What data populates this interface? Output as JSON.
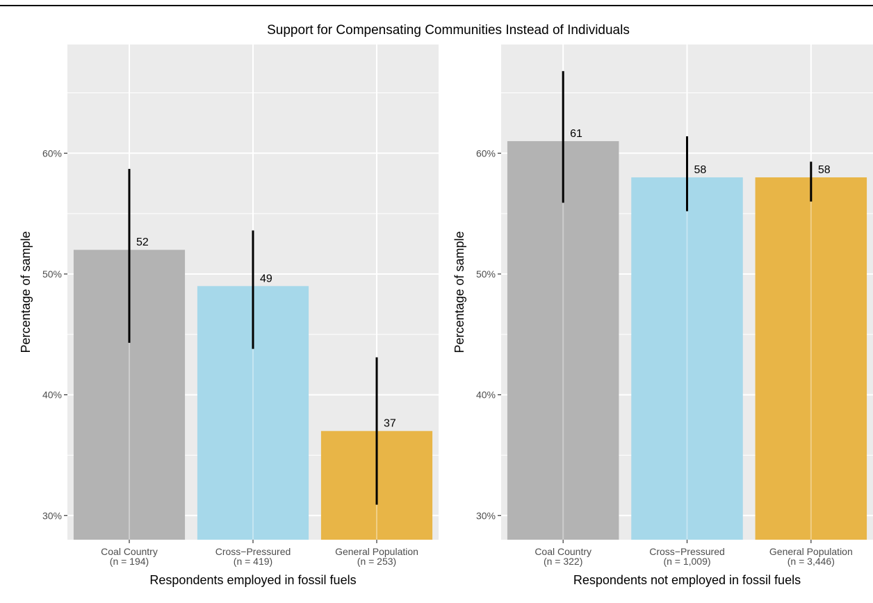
{
  "chart_data": {
    "type": "bar",
    "title": "Support for Compensating Communities Instead of Individuals",
    "colors": [
      "#b3b3b3",
      "#a6d8ea",
      "#e8b547"
    ],
    "panels": [
      {
        "xlabel": "Respondents employed in fossil fuels",
        "ylabel": "Percentage of sample",
        "ylim": [
          28,
          69
        ],
        "yticks": [
          30,
          40,
          50,
          60
        ],
        "ytick_labels": [
          "30%",
          "40%",
          "50%",
          "60%"
        ],
        "categories": [
          "Coal Country",
          "Cross−Pressured",
          "General Population"
        ],
        "sample_sizes": [
          "(n = 194)",
          "(n = 419)",
          "(n = 253)"
        ],
        "values": [
          52,
          49,
          37
        ],
        "value_labels": [
          "52",
          "49",
          "37"
        ],
        "error_low": [
          44.3,
          43.8,
          30.9
        ],
        "error_high": [
          58.7,
          53.6,
          43.1
        ]
      },
      {
        "xlabel": "Respondents not employed in fossil fuels",
        "ylabel": "Percentage of sample",
        "ylim": [
          28,
          69
        ],
        "yticks": [
          30,
          40,
          50,
          60
        ],
        "ytick_labels": [
          "30%",
          "40%",
          "50%",
          "60%"
        ],
        "categories": [
          "Coal Country",
          "Cross−Pressured",
          "General Population"
        ],
        "sample_sizes": [
          "(n = 322)",
          "(n = 1,009)",
          "(n = 3,446)"
        ],
        "values": [
          61,
          58,
          58
        ],
        "value_labels": [
          "61",
          "58",
          "58"
        ],
        "error_low": [
          55.9,
          55.2,
          56.0
        ],
        "error_high": [
          66.8,
          61.4,
          59.3
        ]
      }
    ]
  }
}
